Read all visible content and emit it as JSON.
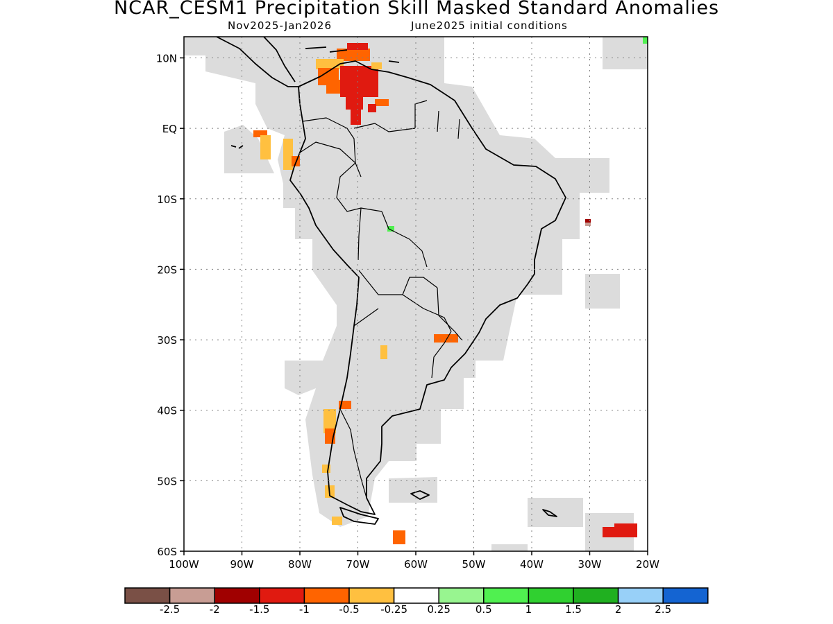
{
  "title": "NCAR_CESM1 Precipitation Skill Masked Standard Anomalies",
  "subtitle_left": "Nov2025-Jan2026",
  "subtitle_right": "June2025 initial conditions",
  "map": {
    "lon_range": [
      -100,
      -20
    ],
    "lat_range": [
      -60,
      13
    ],
    "lon_ticks": [
      "100W",
      "90W",
      "80W",
      "70W",
      "60W",
      "50W",
      "40W",
      "30W",
      "20W"
    ],
    "lat_ticks": [
      "10N",
      "EQ",
      "10S",
      "20S",
      "30S",
      "40S",
      "50S",
      "60S"
    ],
    "masked_color": "#dcdcdc"
  },
  "colorbar": {
    "colors": [
      "#7a5046",
      "#c89d94",
      "#a00000",
      "#e01a10",
      "#ff6400",
      "#ffc040",
      "#ffffff",
      "#98f590",
      "#50f050",
      "#30d030",
      "#20b020",
      "#98d0f8",
      "#1464d2"
    ],
    "labels": [
      "-2.5",
      "-2",
      "-1.5",
      "-1",
      "-0.5",
      "-0.25",
      "0.25",
      "0.5",
      "1",
      "1.5",
      "2",
      "2.5"
    ]
  }
}
